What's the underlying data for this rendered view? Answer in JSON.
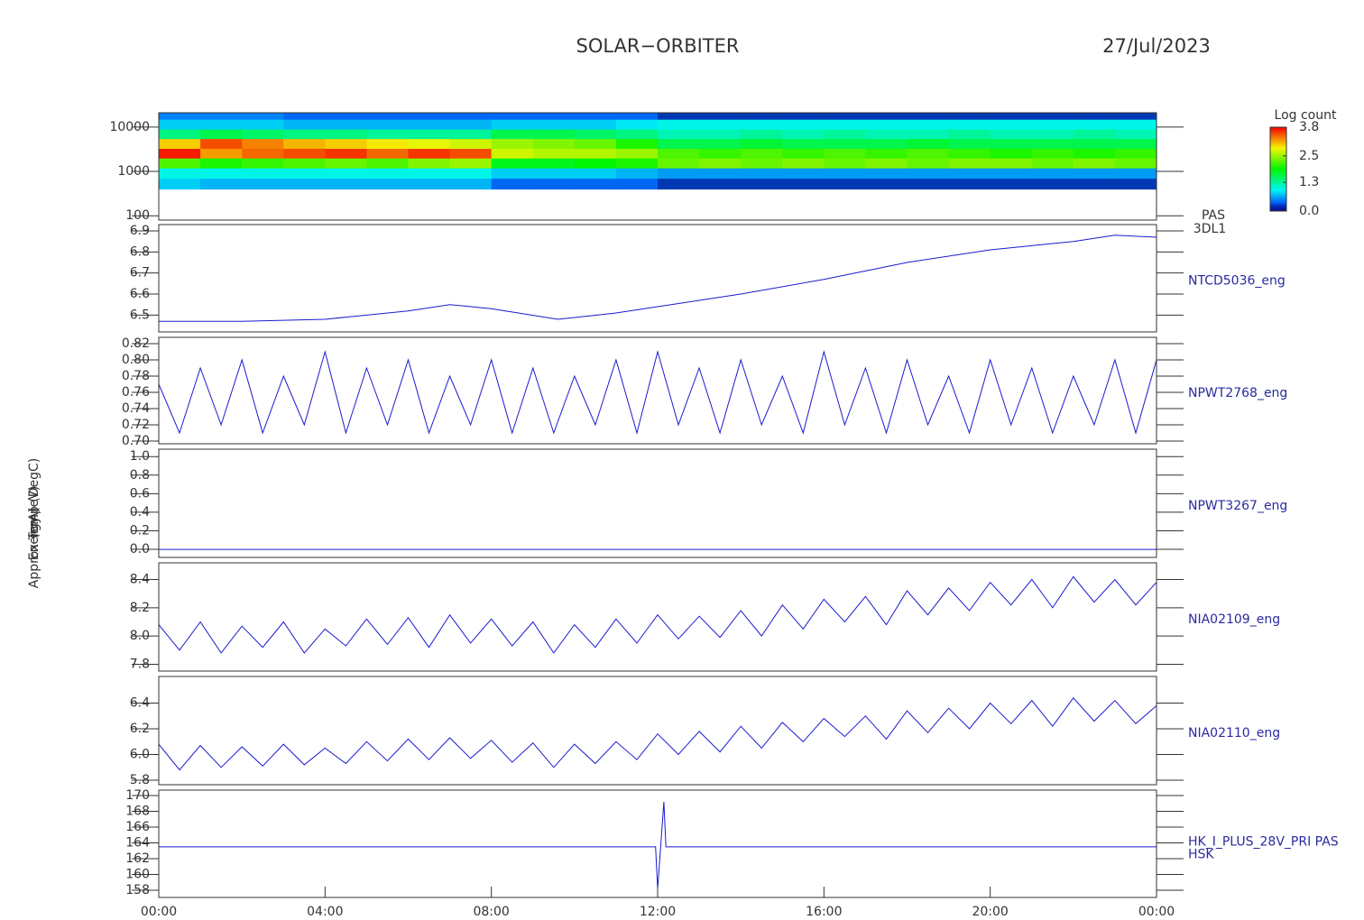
{
  "title": "SOLAR−ORBITER",
  "date": "27/Jul/2023",
  "chart_data": [
    {
      "type": "heatmap",
      "ylabel": "Energy (eV)",
      "right_labels": [
        "PAS",
        "3DL1"
      ],
      "xlim": [
        0,
        24
      ],
      "ylim": [
        80,
        21000
      ],
      "log_y": true,
      "yticks": [
        100,
        1000,
        10000
      ],
      "x_edges": [
        0,
        1,
        2,
        3,
        4,
        5,
        6,
        7,
        8,
        9,
        10,
        11,
        12,
        13,
        14,
        15,
        16,
        17,
        18,
        19,
        20,
        21,
        22,
        23,
        24
      ],
      "y_edges": [
        400,
        700,
        1200,
        2000,
        3300,
        5500,
        9000,
        15000,
        21000
      ],
      "z": [
        [
          0.8,
          1.0,
          2.2,
          3.7,
          3.0,
          1.4,
          0.8,
          0.5
        ],
        [
          0.7,
          1.0,
          2.0,
          3.2,
          3.5,
          1.6,
          0.8,
          0.5
        ],
        [
          0.7,
          1.0,
          2.1,
          3.4,
          3.3,
          1.5,
          0.8,
          0.5
        ],
        [
          0.7,
          1.0,
          2.2,
          3.5,
          3.1,
          1.4,
          0.7,
          0.4
        ],
        [
          0.7,
          1.0,
          2.3,
          3.6,
          3.0,
          1.4,
          0.7,
          0.4
        ],
        [
          0.7,
          1.0,
          2.2,
          3.4,
          2.9,
          1.3,
          0.7,
          0.4
        ],
        [
          0.7,
          1.0,
          2.4,
          3.6,
          2.8,
          1.3,
          0.7,
          0.4
        ],
        [
          0.7,
          1.0,
          2.5,
          3.5,
          2.7,
          1.3,
          0.7,
          0.4
        ],
        [
          0.4,
          0.8,
          1.8,
          2.7,
          2.5,
          1.6,
          0.8,
          0.4
        ],
        [
          0.4,
          0.8,
          1.8,
          2.6,
          2.4,
          1.6,
          0.8,
          0.4
        ],
        [
          0.4,
          0.8,
          1.9,
          2.6,
          2.3,
          1.5,
          0.8,
          0.4
        ],
        [
          0.4,
          0.7,
          2.0,
          2.5,
          2.0,
          1.4,
          0.9,
          0.4
        ],
        [
          0.3,
          0.6,
          2.3,
          2.2,
          1.6,
          1.2,
          1.0,
          0.3
        ],
        [
          0.3,
          0.6,
          2.4,
          2.1,
          1.6,
          1.2,
          1.0,
          0.3
        ],
        [
          0.3,
          0.6,
          2.3,
          2.2,
          1.7,
          1.3,
          1.0,
          0.3
        ],
        [
          0.3,
          0.6,
          2.4,
          2.1,
          1.6,
          1.2,
          1.0,
          0.3
        ],
        [
          0.3,
          0.6,
          2.3,
          2.2,
          1.6,
          1.3,
          1.0,
          0.3
        ],
        [
          0.3,
          0.6,
          2.4,
          2.1,
          1.6,
          1.2,
          1.0,
          0.3
        ],
        [
          0.3,
          0.6,
          2.3,
          2.2,
          1.7,
          1.2,
          1.0,
          0.3
        ],
        [
          0.3,
          0.6,
          2.4,
          2.1,
          1.6,
          1.3,
          1.0,
          0.3
        ],
        [
          0.3,
          0.6,
          2.4,
          2.0,
          1.6,
          1.2,
          1.0,
          0.3
        ],
        [
          0.3,
          0.6,
          2.3,
          2.1,
          1.6,
          1.2,
          1.0,
          0.3
        ],
        [
          0.3,
          0.6,
          2.4,
          2.0,
          1.6,
          1.3,
          1.0,
          0.3
        ],
        [
          0.3,
          0.6,
          2.3,
          2.1,
          1.6,
          1.2,
          1.0,
          0.3
        ]
      ],
      "colorbar": {
        "label": "Log count",
        "clim": [
          0,
          3.8
        ],
        "ticks": [
          {
            "value": 0,
            "label": "0.0"
          },
          {
            "value": 1.3,
            "label": "1.3"
          },
          {
            "value": 2.5,
            "label": "2.5"
          },
          {
            "value": 3.8,
            "label": "3.8"
          }
        ]
      }
    },
    {
      "type": "line",
      "ylabel": "Approx Temp (DegC)",
      "right_labels": [
        "NTCD5036_eng"
      ],
      "color": "#1a1ad0",
      "xlim": [
        0,
        24
      ],
      "ylim": [
        6.42,
        6.93
      ],
      "yticks": [
        6.5,
        6.6,
        6.7,
        6.8,
        6.9
      ],
      "x": [
        0,
        2,
        4,
        6,
        7,
        8,
        9.6,
        11,
        12,
        14,
        16,
        18,
        20,
        22,
        23,
        24
      ],
      "values": [
        6.47,
        6.47,
        6.48,
        6.52,
        6.55,
        6.53,
        6.48,
        6.51,
        6.54,
        6.6,
        6.67,
        6.75,
        6.81,
        6.85,
        6.88,
        6.87
      ]
    },
    {
      "type": "line",
      "right_labels": [
        "NPWT2768_eng"
      ],
      "color": "#1a1ad0",
      "xlim": [
        0,
        24
      ],
      "ylim": [
        0.6967,
        0.8278
      ],
      "yticks": [
        {
          "value": 0.7,
          "label": "0.70"
        },
        0.72,
        0.74,
        0.76,
        0.78,
        {
          "value": 0.8,
          "label": "0.80"
        },
        0.82
      ],
      "x": [
        0,
        0.5,
        1,
        1.5,
        2,
        2.5,
        3,
        3.5,
        4,
        4.5,
        5,
        5.5,
        6,
        6.5,
        7,
        7.5,
        8,
        8.5,
        9,
        9.5,
        10,
        10.5,
        11,
        11.5,
        12,
        12.5,
        13,
        13.5,
        14,
        14.5,
        15,
        15.5,
        16,
        16.5,
        17,
        17.5,
        18,
        18.5,
        19,
        19.5,
        20,
        20.5,
        21,
        21.5,
        22,
        22.5,
        23,
        23.5,
        24
      ],
      "values": [
        0.77,
        0.71,
        0.79,
        0.72,
        0.8,
        0.71,
        0.78,
        0.72,
        0.81,
        0.71,
        0.79,
        0.72,
        0.8,
        0.71,
        0.78,
        0.72,
        0.8,
        0.71,
        0.79,
        0.71,
        0.78,
        0.72,
        0.8,
        0.71,
        0.81,
        0.72,
        0.79,
        0.71,
        0.8,
        0.72,
        0.78,
        0.71,
        0.81,
        0.72,
        0.79,
        0.71,
        0.8,
        0.72,
        0.78,
        0.71,
        0.8,
        0.72,
        0.79,
        0.71,
        0.78,
        0.72,
        0.8,
        0.71,
        0.8
      ]
    },
    {
      "type": "line",
      "right_labels": [
        "NPWT3267_eng"
      ],
      "color": "#1a1ad0",
      "xlim": [
        0,
        24
      ],
      "ylim": [
        -0.087,
        1.08
      ],
      "yticks": [
        {
          "value": 0,
          "label": "0.0"
        },
        0.2,
        0.4,
        0.6,
        0.8,
        {
          "value": 1,
          "label": "1.0"
        }
      ],
      "x": [
        0,
        24
      ],
      "values": [
        0,
        0
      ]
    },
    {
      "type": "line",
      "right_labels": [
        "NIA02109_eng"
      ],
      "color": "#1a1ad0",
      "xlim": [
        0,
        24
      ],
      "ylim": [
        7.752,
        8.518
      ],
      "yticks": [
        7.8,
        {
          "value": 8,
          "label": "8.0"
        },
        8.2,
        8.4
      ],
      "x": [
        0,
        0.5,
        1,
        1.5,
        2,
        2.5,
        3,
        3.5,
        4,
        4.5,
        5,
        5.5,
        6,
        6.5,
        7,
        7.5,
        8,
        8.5,
        9,
        9.5,
        10,
        10.5,
        11,
        11.5,
        12,
        12.5,
        13,
        13.5,
        14,
        14.5,
        15,
        15.5,
        16,
        16.5,
        17,
        17.5,
        18,
        18.5,
        19,
        19.5,
        20,
        20.5,
        21,
        21.5,
        22,
        22.5,
        23,
        23.5,
        24
      ],
      "values": [
        8.08,
        7.9,
        8.1,
        7.88,
        8.07,
        7.92,
        8.1,
        7.88,
        8.05,
        7.93,
        8.12,
        7.94,
        8.13,
        7.92,
        8.15,
        7.95,
        8.12,
        7.93,
        8.1,
        7.88,
        8.08,
        7.92,
        8.12,
        7.95,
        8.15,
        7.98,
        8.14,
        7.99,
        8.18,
        8.0,
        8.22,
        8.05,
        8.26,
        8.1,
        8.28,
        8.08,
        8.32,
        8.15,
        8.34,
        8.18,
        8.38,
        8.22,
        8.4,
        8.2,
        8.42,
        8.24,
        8.4,
        8.22,
        8.38
      ]
    },
    {
      "type": "line",
      "right_labels": [
        "NIA02110_eng"
      ],
      "color": "#1a1ad0",
      "xlim": [
        0,
        24
      ],
      "ylim": [
        5.765,
        6.607
      ],
      "yticks": [
        5.8,
        {
          "value": 6,
          "label": "6.0"
        },
        6.2,
        6.4
      ],
      "x": [
        0,
        0.5,
        1,
        1.5,
        2,
        2.5,
        3,
        3.5,
        4,
        4.5,
        5,
        5.5,
        6,
        6.5,
        7,
        7.5,
        8,
        8.5,
        9,
        9.5,
        10,
        10.5,
        11,
        11.5,
        12,
        12.5,
        13,
        13.5,
        14,
        14.5,
        15,
        15.5,
        16,
        16.5,
        17,
        17.5,
        18,
        18.5,
        19,
        19.5,
        20,
        20.5,
        21,
        21.5,
        22,
        22.5,
        23,
        23.5,
        24
      ],
      "values": [
        6.08,
        5.88,
        6.07,
        5.9,
        6.06,
        5.91,
        6.08,
        5.92,
        6.05,
        5.93,
        6.1,
        5.95,
        6.12,
        5.96,
        6.13,
        5.97,
        6.11,
        5.94,
        6.09,
        5.9,
        6.08,
        5.93,
        6.1,
        5.96,
        6.16,
        6.0,
        6.18,
        6.02,
        6.22,
        6.05,
        6.25,
        6.1,
        6.28,
        6.14,
        6.3,
        6.12,
        6.34,
        6.17,
        6.36,
        6.2,
        6.4,
        6.24,
        6.42,
        6.22,
        6.44,
        6.26,
        6.42,
        6.24,
        6.38
      ]
    },
    {
      "type": "line",
      "ylabel": "(mA)",
      "right_labels": [
        "HK_I_PLUS_28V_PRI PAS",
        "HSK"
      ],
      "color": "#1a1ad0",
      "xlim": [
        0,
        24
      ],
      "ylim": [
        157.09,
        170.69
      ],
      "yticks": [
        158,
        160,
        162,
        164,
        166,
        168,
        170
      ],
      "x": [
        0,
        11.95,
        12.0,
        12.15,
        12.2,
        24
      ],
      "values": [
        163.5,
        163.5,
        158.2,
        169.2,
        163.5,
        163.5
      ],
      "xticks": [
        {
          "value": 0,
          "label": "00:00"
        },
        {
          "value": 4,
          "label": "04:00"
        },
        {
          "value": 8,
          "label": "08:00"
        },
        {
          "value": 12,
          "label": "12:00"
        },
        {
          "value": 16,
          "label": "16:00"
        },
        {
          "value": 20,
          "label": "20:00"
        },
        {
          "value": 24,
          "label": "00:00"
        }
      ]
    }
  ]
}
